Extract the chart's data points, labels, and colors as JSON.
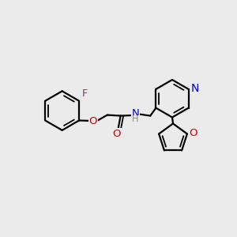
{
  "background_color": "#ebebeb",
  "figsize": [
    3.0,
    3.0
  ],
  "dpi": 100,
  "lw": 1.6,
  "colors": {
    "C": "#000000",
    "F": "#cc00cc",
    "O": "#cc0000",
    "N_blue": "#0000cc",
    "N_teal": "#0000cc",
    "H": "#888888",
    "NH_blue": "#4444aa"
  }
}
